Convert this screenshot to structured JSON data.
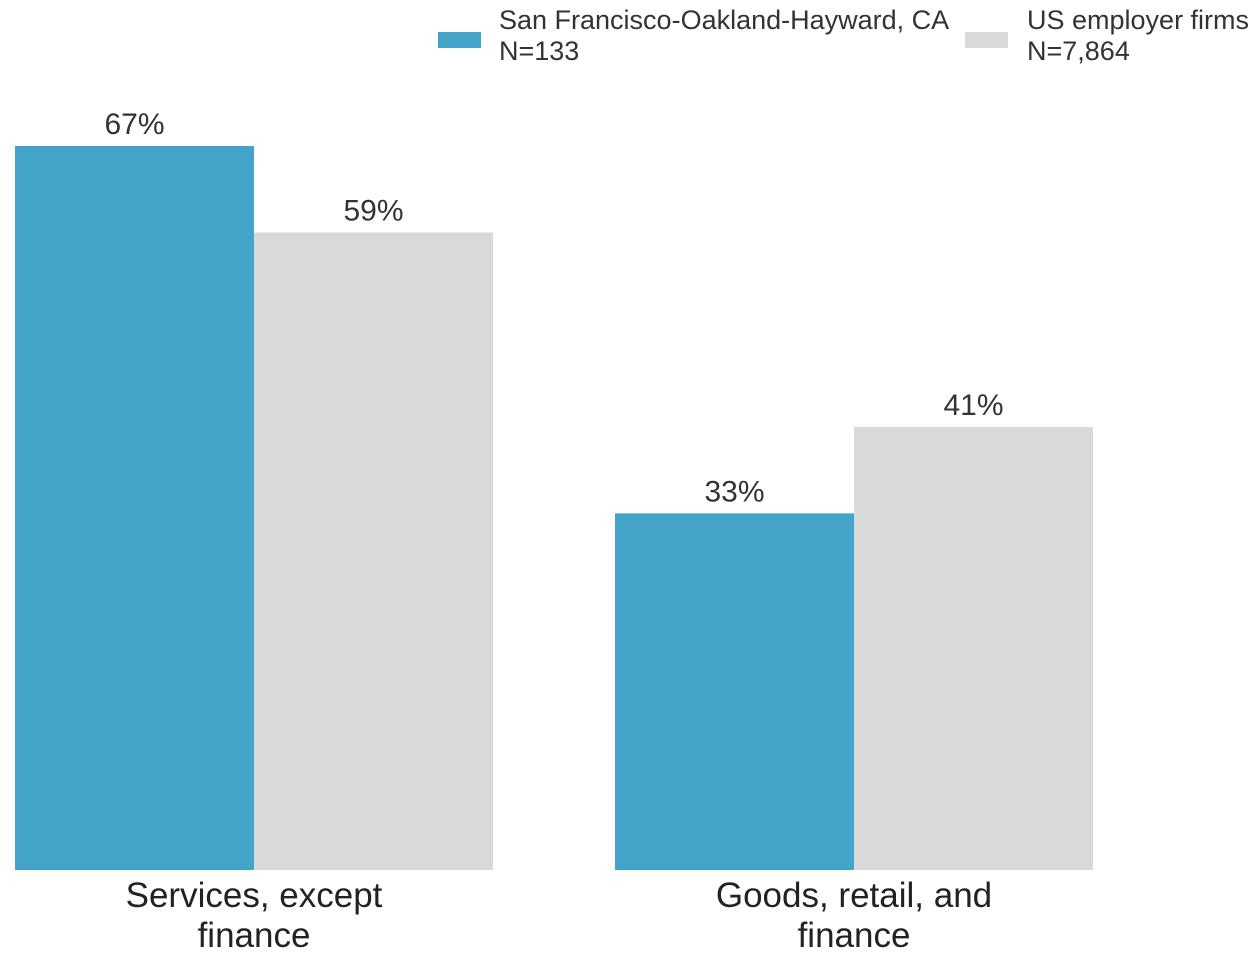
{
  "chart_data": {
    "type": "bar",
    "categories": [
      [
        "Services, except",
        "finance"
      ],
      [
        "Goods, retail, and",
        "finance"
      ]
    ],
    "series": [
      {
        "name": "San Francisco-Oakland-Hayward, CA",
        "sample": "N=133",
        "color": "#43a3c8",
        "values": [
          67,
          33
        ],
        "labels": [
          "67%",
          "33%"
        ]
      },
      {
        "name": "US employer firms",
        "sample": "N=7,864",
        "color": "#d9d9d9",
        "values": [
          59,
          41
        ],
        "labels": [
          "59%",
          "41%"
        ]
      }
    ],
    "title": "",
    "xlabel": "",
    "ylabel": "",
    "ylim": [
      0,
      67
    ],
    "grid": false,
    "legend_position": "top-right"
  }
}
